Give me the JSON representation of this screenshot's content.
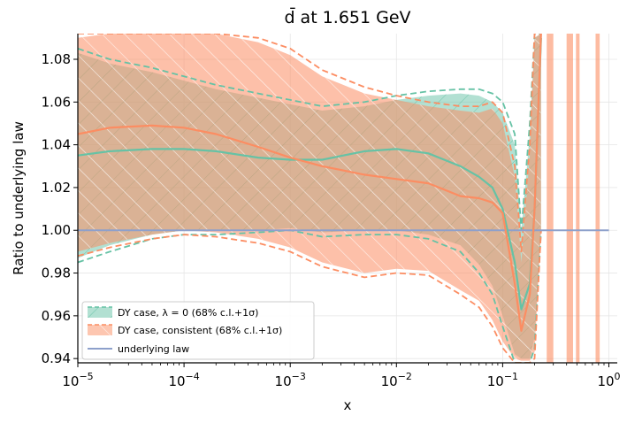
{
  "chart_data": {
    "type": "line",
    "title": "d̄ at 1.651 GeV",
    "xlabel": "x",
    "ylabel": "Ratio to underlying law",
    "xscale": "log",
    "xlim": [
      1e-05,
      1.2
    ],
    "ylim": [
      0.938,
      1.092
    ],
    "x_ticks": [
      {
        "value": 1e-05,
        "label_base": "10",
        "label_exp": "−5"
      },
      {
        "value": 0.0001,
        "label_base": "10",
        "label_exp": "−4"
      },
      {
        "value": 0.001,
        "label_base": "10",
        "label_exp": "−3"
      },
      {
        "value": 0.01,
        "label_base": "10",
        "label_exp": "−2"
      },
      {
        "value": 0.1,
        "label_base": "10",
        "label_exp": "−1"
      },
      {
        "value": 1,
        "label_base": "10",
        "label_exp": "0"
      }
    ],
    "y_ticks": [
      "0.94",
      "0.96",
      "0.98",
      "1.00",
      "1.02",
      "1.04",
      "1.06",
      "1.08"
    ],
    "grid": true,
    "legend_position": "bottom-left",
    "colors": {
      "green": "#66c2a5",
      "orange": "#fc8d62",
      "blue": "#8da0cb"
    },
    "series": [
      {
        "name": "DY case, λ = 0 (68% c.l.+1σ)",
        "color": "#66c2a5",
        "x": [
          1e-05,
          2e-05,
          5e-05,
          0.0001,
          0.0002,
          0.0005,
          0.001,
          0.002,
          0.005,
          0.01,
          0.02,
          0.04,
          0.06,
          0.08,
          0.1,
          0.13,
          0.15,
          0.18,
          0.2,
          0.23
        ],
        "central": [
          1.035,
          1.037,
          1.038,
          1.038,
          1.037,
          1.034,
          1.033,
          1.033,
          1.037,
          1.038,
          1.036,
          1.03,
          1.025,
          1.02,
          1.01,
          0.985,
          0.963,
          0.975,
          1.01,
          1.09
        ],
        "upper": [
          1.085,
          1.08,
          1.076,
          1.072,
          1.068,
          1.064,
          1.061,
          1.058,
          1.06,
          1.063,
          1.065,
          1.066,
          1.066,
          1.064,
          1.06,
          1.045,
          1.0,
          1.05,
          1.092,
          1.092
        ],
        "lower": [
          0.985,
          0.99,
          0.996,
          0.998,
          0.998,
          0.999,
          1.0,
          0.997,
          0.998,
          0.998,
          0.996,
          0.99,
          0.98,
          0.97,
          0.955,
          0.938,
          0.938,
          0.938,
          0.945,
          1.0
        ],
        "upper_68": [
          1.083,
          1.078,
          1.074,
          1.07,
          1.066,
          1.062,
          1.059,
          1.056,
          1.058,
          1.061,
          1.063,
          1.064,
          1.063,
          1.06,
          1.055,
          1.04,
          1.0,
          1.045,
          1.09,
          1.092
        ],
        "lower_68": [
          0.987,
          0.993,
          0.998,
          1.0,
          1.0,
          1.0,
          1.001,
          0.999,
          1.0,
          1.0,
          0.998,
          0.993,
          0.984,
          0.974,
          0.96,
          0.942,
          0.94,
          0.94,
          0.95,
          1.0
        ]
      },
      {
        "name": "DY case, consistent (68% c.l.+1σ)",
        "color": "#fc8d62",
        "x": [
          1e-05,
          2e-05,
          5e-05,
          0.0001,
          0.0002,
          0.0005,
          0.001,
          0.002,
          0.005,
          0.01,
          0.02,
          0.04,
          0.06,
          0.08,
          0.1,
          0.13,
          0.15,
          0.18,
          0.2,
          0.23
        ],
        "central": [
          1.045,
          1.048,
          1.049,
          1.048,
          1.045,
          1.039,
          1.034,
          1.03,
          1.026,
          1.024,
          1.022,
          1.016,
          1.015,
          1.013,
          1.008,
          0.975,
          0.953,
          0.97,
          1.01,
          1.092
        ],
        "upper": [
          1.092,
          1.092,
          1.092,
          1.092,
          1.092,
          1.09,
          1.085,
          1.075,
          1.067,
          1.063,
          1.06,
          1.058,
          1.058,
          1.06,
          1.055,
          1.03,
          0.99,
          1.04,
          1.092,
          1.092
        ],
        "lower": [
          0.988,
          0.992,
          0.996,
          0.998,
          0.997,
          0.994,
          0.99,
          0.983,
          0.978,
          0.98,
          0.979,
          0.97,
          0.964,
          0.955,
          0.945,
          0.938,
          0.938,
          0.938,
          0.94,
          1.0
        ],
        "upper_68": [
          1.09,
          1.092,
          1.092,
          1.092,
          1.092,
          1.088,
          1.082,
          1.072,
          1.064,
          1.061,
          1.058,
          1.056,
          1.055,
          1.057,
          1.05,
          1.025,
          0.985,
          1.035,
          1.09,
          1.092
        ],
        "lower_68": [
          0.99,
          0.994,
          0.998,
          1.0,
          0.999,
          0.996,
          0.992,
          0.985,
          0.98,
          0.982,
          0.981,
          0.972,
          0.967,
          0.958,
          0.948,
          0.94,
          0.939,
          0.939,
          0.943,
          1.0
        ]
      },
      {
        "name": "underlying law",
        "color": "#8da0cb",
        "x": [
          1e-05,
          1
        ],
        "values": [
          1.0,
          1.0
        ]
      }
    ]
  }
}
